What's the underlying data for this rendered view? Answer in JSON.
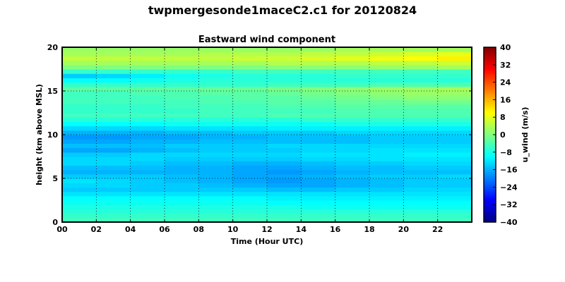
{
  "figure_title": "twpmergesonde1maceC2.c1 for 20120824",
  "chart_data": {
    "type": "heatmap",
    "title": "Eastward wind component",
    "xlabel": "Time (Hour UTC)",
    "ylabel": "height (km above MSL)",
    "xlim": [
      0,
      24
    ],
    "ylim": [
      0,
      20
    ],
    "x_ticks": [
      "00",
      "02",
      "04",
      "06",
      "08",
      "10",
      "12",
      "14",
      "16",
      "18",
      "20",
      "22"
    ],
    "y_ticks": [
      "0",
      "5",
      "10",
      "15",
      "20"
    ],
    "grid": true,
    "colormap": "jet",
    "colorbar": {
      "label": "u_wind (m/s)",
      "range": [
        -40,
        40
      ],
      "ticks": [
        "40",
        "32",
        "24",
        "16",
        "8",
        "0",
        "−8",
        "−16",
        "−24",
        "−32",
        "−40"
      ]
    },
    "height_km": [
      0,
      0.5,
      1,
      1.5,
      2,
      2.5,
      3,
      3.5,
      4,
      4.5,
      5,
      5.5,
      6,
      6.5,
      7,
      7.5,
      8,
      8.5,
      9,
      9.5,
      10,
      10.5,
      11,
      11.5,
      12,
      12.5,
      13,
      13.5,
      14,
      14.5,
      15,
      15.5,
      16,
      16.5,
      17,
      17.5,
      18,
      18.5,
      19,
      19.5
    ],
    "time_hour": [
      0,
      2,
      4,
      6,
      8,
      10,
      12,
      14,
      16,
      18,
      20,
      22
    ],
    "u_wind": [
      [
        -5,
        -5,
        -5,
        -5,
        -5,
        -5,
        -5,
        -5,
        -5,
        -5,
        -5,
        -5
      ],
      [
        -6,
        -6,
        -6,
        -6,
        -6,
        -6,
        -6,
        -6,
        -6,
        -6,
        -6,
        -6
      ],
      [
        -7,
        -7,
        -7,
        -7,
        -7,
        -7,
        -7,
        -7,
        -7,
        -7,
        -7,
        -7
      ],
      [
        -8,
        -8,
        -8,
        -8,
        -8,
        -8,
        -8,
        -9,
        -9,
        -9,
        -9,
        -9
      ],
      [
        -9,
        -9,
        -9,
        -9,
        -9,
        -9,
        -10,
        -10,
        -10,
        -10,
        -10,
        -10
      ],
      [
        -10,
        -10,
        -10,
        -10,
        -10,
        -10,
        -11,
        -11,
        -11,
        -11,
        -11,
        -11
      ],
      [
        -12,
        -12,
        -12,
        -12,
        -12,
        -12,
        -12,
        -12,
        -12,
        -12,
        -12,
        -12
      ],
      [
        -14,
        -14,
        -14,
        -14,
        -14,
        -14,
        -15,
        -15,
        -14,
        -14,
        -13,
        -13
      ],
      [
        -13,
        -13,
        -14,
        -14,
        -15,
        -16,
        -17,
        -17,
        -16,
        -15,
        -14,
        -14
      ],
      [
        -12,
        -13,
        -14,
        -15,
        -16,
        -17,
        -18,
        -17,
        -16,
        -15,
        -14,
        -14
      ],
      [
        -14,
        -14,
        -14,
        -15,
        -16,
        -17,
        -17,
        -16,
        -15,
        -14,
        -14,
        -13
      ],
      [
        -16,
        -16,
        -16,
        -16,
        -16,
        -17,
        -18,
        -17,
        -16,
        -15,
        -15,
        -15
      ],
      [
        -15,
        -15,
        -15,
        -16,
        -16,
        -17,
        -17,
        -16,
        -15,
        -15,
        -14,
        -14
      ],
      [
        -13,
        -13,
        -14,
        -15,
        -15,
        -16,
        -16,
        -15,
        -14,
        -14,
        -13,
        -13
      ],
      [
        -13,
        -13,
        -13,
        -14,
        -14,
        -14,
        -14,
        -13,
        -13,
        -12,
        -12,
        -12
      ],
      [
        -14,
        -14,
        -13,
        -13,
        -13,
        -13,
        -13,
        -12,
        -12,
        -12,
        -11,
        -11
      ],
      [
        -17,
        -17,
        -16,
        -15,
        -14,
        -14,
        -14,
        -13,
        -13,
        -12,
        -12,
        -12
      ],
      [
        -15,
        -15,
        -15,
        -14,
        -14,
        -14,
        -13,
        -13,
        -13,
        -13,
        -13,
        -13
      ],
      [
        -17,
        -17,
        -16,
        -16,
        -15,
        -15,
        -15,
        -15,
        -15,
        -14,
        -14,
        -14
      ],
      [
        -18,
        -18,
        -17,
        -17,
        -16,
        -16,
        -15,
        -15,
        -15,
        -14,
        -14,
        -14
      ],
      [
        -16,
        -16,
        -16,
        -15,
        -15,
        -14,
        -14,
        -14,
        -13,
        -13,
        -13,
        -13
      ],
      [
        -13,
        -13,
        -13,
        -12,
        -12,
        -12,
        -11,
        -11,
        -11,
        -11,
        -11,
        -11
      ],
      [
        -10,
        -10,
        -10,
        -9,
        -9,
        -9,
        -9,
        -9,
        -8,
        -8,
        -8,
        -8
      ],
      [
        -7,
        -7,
        -7,
        -7,
        -7,
        -7,
        -7,
        -6,
        -6,
        -6,
        -6,
        -6
      ],
      [
        -5,
        -5,
        -5,
        -5,
        -5,
        -5,
        -4,
        -4,
        -4,
        -4,
        -4,
        -4
      ],
      [
        -6,
        -6,
        -6,
        -6,
        -5,
        -5,
        -5,
        -5,
        -4,
        -4,
        -4,
        -4
      ],
      [
        -6,
        -6,
        -6,
        -5,
        -5,
        -5,
        -4,
        -4,
        -3,
        -3,
        -3,
        -3
      ],
      [
        -5,
        -5,
        -5,
        -5,
        -4,
        -4,
        -3,
        -3,
        -2,
        -2,
        -1,
        -1
      ],
      [
        -5,
        -5,
        -5,
        -4,
        -4,
        -3,
        -3,
        -2,
        -1,
        0,
        1,
        1
      ],
      [
        -5,
        -5,
        -4,
        -4,
        -3,
        -3,
        -2,
        -1,
        0,
        1,
        2,
        2
      ],
      [
        -3,
        -3,
        -3,
        -3,
        -2,
        -2,
        -1,
        0,
        1,
        2,
        2,
        3
      ],
      [
        -6,
        -6,
        -6,
        -6,
        -6,
        -6,
        -5,
        -5,
        -5,
        -4,
        -4,
        -4
      ],
      [
        -10,
        -10,
        -9,
        -8,
        -7,
        -7,
        -7,
        -7,
        -7,
        -7,
        -7,
        -7
      ],
      [
        -14,
        -13,
        -11,
        -9,
        -8,
        -7,
        -7,
        -7,
        -6,
        -6,
        -6,
        -6
      ],
      [
        -6,
        -6,
        -6,
        -6,
        -6,
        -5,
        -5,
        -5,
        -5,
        -5,
        -5,
        -5
      ],
      [
        0,
        0,
        0,
        0,
        0,
        0,
        1,
        1,
        1,
        2,
        2,
        3
      ],
      [
        3,
        3,
        3,
        3,
        3,
        3,
        4,
        4,
        4,
        5,
        5,
        6
      ],
      [
        5,
        5,
        5,
        5,
        5,
        6,
        6,
        7,
        8,
        9,
        10,
        11
      ],
      [
        3,
        3,
        3,
        3,
        4,
        4,
        4,
        5,
        5,
        6,
        7,
        8
      ],
      [
        2,
        2,
        2,
        2,
        2,
        2,
        2,
        2,
        3,
        3,
        3,
        3
      ]
    ]
  }
}
